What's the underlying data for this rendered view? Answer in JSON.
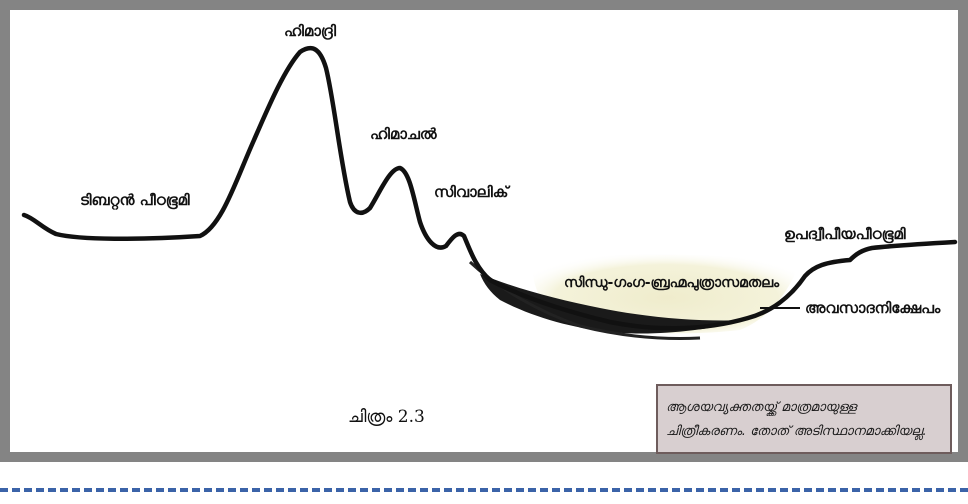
{
  "labels": {
    "tibetan_plateau": "ടിബറ്റൻ പീഠഭൂമി",
    "himadri": "ഹിമാദ്രി",
    "himachal": "ഹിമാചൽ",
    "shivalik": "സിവാലിക്",
    "indo_gangetic_plain": "സിന്ധു-ഗംഗ-ബ്രഹ്മപുത്രാസമതലം",
    "peninsular_plateau": "ഉപദ്വീപീയപീഠഭൂമി",
    "sediment_deposit": "അവസാദനിക്ഷേപം"
  },
  "caption": "ചിത്രം 2.3",
  "note": {
    "line1": "ആശയവ്യക്തതയ്ക്ക് മാത്രമായുള്ള",
    "line2": "ചിത്രീകരണം. തോത് അടിസ്ഥാനമാക്കിയല്ല."
  },
  "colors": {
    "frame": "#848484",
    "profile": "#111111",
    "plain_fill": "#f1efcf",
    "note_bg": "#d8cfd0",
    "dash": "#3b63a8"
  }
}
